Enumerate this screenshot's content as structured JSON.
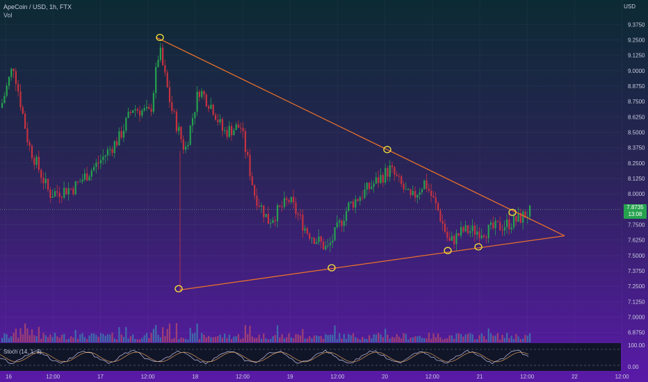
{
  "header": {
    "symbol_line": "ApeCoin / USD, 1h, FTX",
    "vol_label": "Vol",
    "currency": "USD"
  },
  "indicator": {
    "label": "Stoch (14, 1, 3)"
  },
  "last_price": {
    "value": "7.8735",
    "countdown": "13:08"
  },
  "colors": {
    "up": "#26a24f",
    "down": "#c8323f",
    "trendline": "#e8702a",
    "marker": "#f2e03a",
    "axis_text": "#c9cce0"
  },
  "chart_data": {
    "type": "candlestick",
    "y_ticks": [
      "9.3750",
      "9.2500",
      "9.1250",
      "9.0000",
      "8.8750",
      "8.7500",
      "8.6250",
      "8.5000",
      "8.3750",
      "8.2500",
      "8.1250",
      "8.0000",
      "7.7500",
      "7.6250",
      "7.5000",
      "7.3750",
      "7.2500",
      "7.1250",
      "7.0000",
      "6.8750"
    ],
    "y_tick_values": [
      9.375,
      9.25,
      9.125,
      9.0,
      8.875,
      8.75,
      8.625,
      8.5,
      8.375,
      8.25,
      8.125,
      8.0,
      7.75,
      7.625,
      7.5,
      7.375,
      7.25,
      7.125,
      7.0,
      6.875
    ],
    "ylim": [
      6.8,
      9.45
    ],
    "x_ticks": [
      "16",
      "12:00",
      "17",
      "12:00",
      "18",
      "12:00",
      "19",
      "12:00",
      "20",
      "12:00",
      "21",
      "12:00",
      "22",
      "12:00"
    ],
    "stoch_ticks": [
      "100.00",
      "0.00"
    ],
    "stoch_lim": [
      0,
      100
    ],
    "trendlines": [
      {
        "name": "upper",
        "x": [
          225,
          812
        ],
        "y": [
          9.27,
          7.66
        ]
      },
      {
        "name": "lower",
        "x": [
          258,
          812
        ],
        "y": [
          7.22,
          7.66
        ]
      }
    ],
    "markers": [
      {
        "x": 230,
        "y": 9.27
      },
      {
        "x": 257,
        "y": 7.23
      },
      {
        "x": 477,
        "y": 7.4
      },
      {
        "x": 557,
        "y": 8.36
      },
      {
        "x": 644,
        "y": 7.54
      },
      {
        "x": 688,
        "y": 7.57
      },
      {
        "x": 737,
        "y": 7.85
      }
    ],
    "last_value": 7.8735
  }
}
